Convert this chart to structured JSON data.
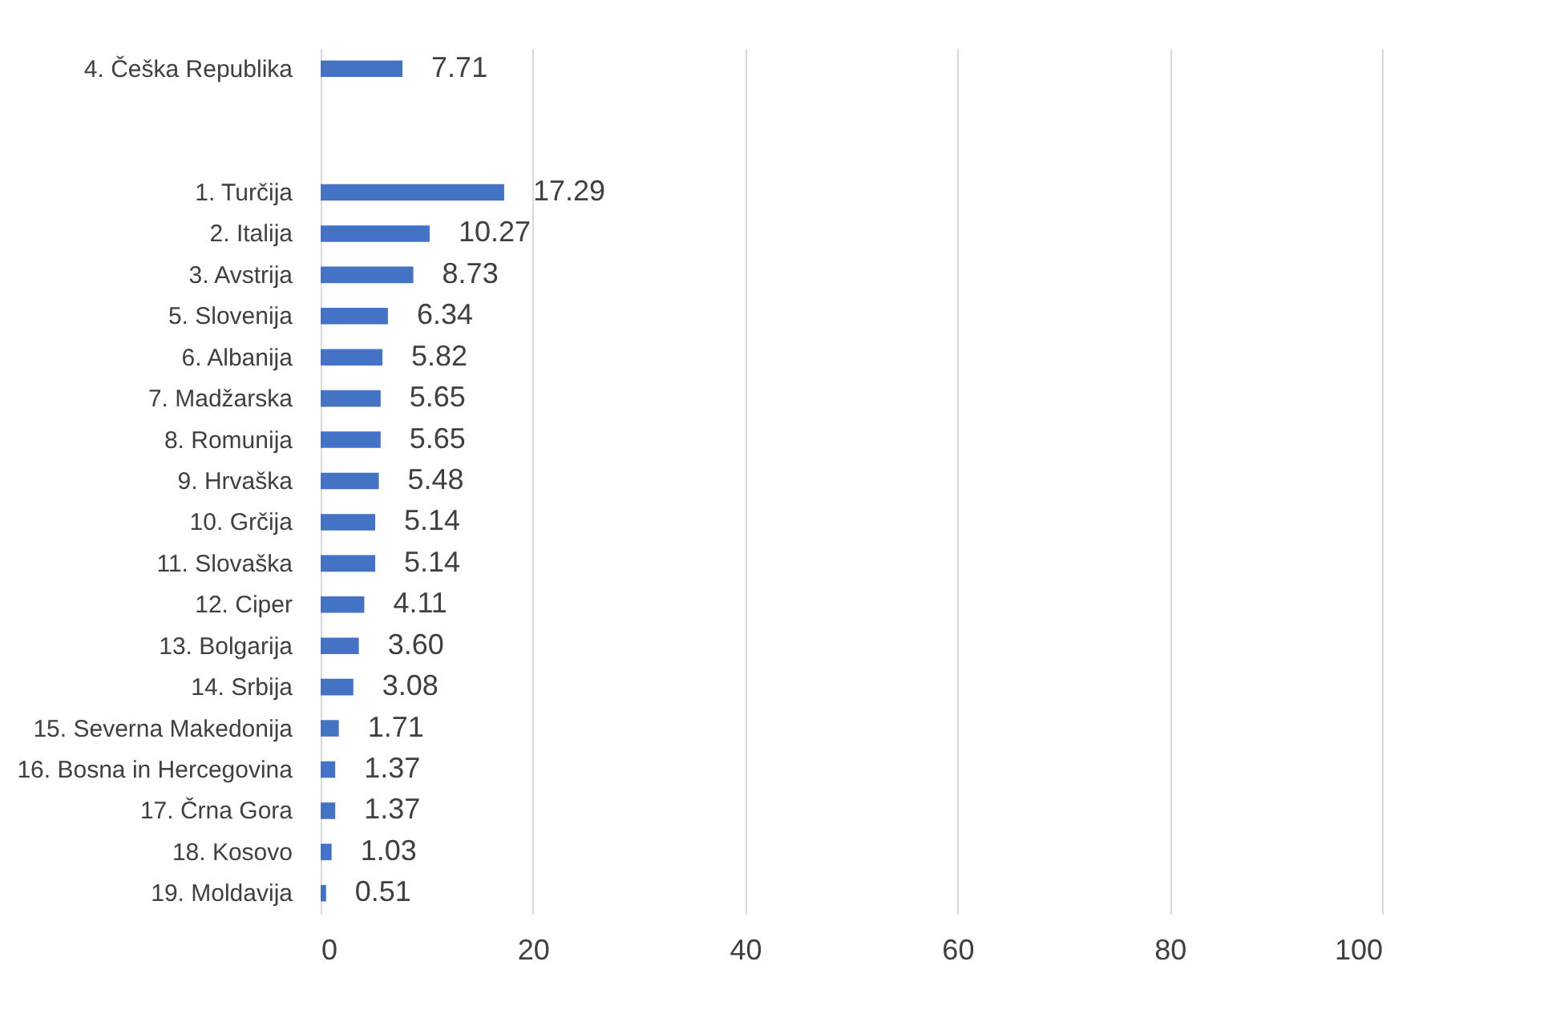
{
  "chart_data": {
    "type": "bar",
    "orientation": "horizontal",
    "categories": [
      "4. Češka Republika",
      null,
      null,
      "1. Turčija",
      "2. Italija",
      "3. Avstrija",
      "5. Slovenija",
      "6. Albanija",
      "7. Madžarska",
      "8. Romunija",
      "9. Hrvaška",
      "10. Grčija",
      "11. Slovaška",
      "12. Ciper",
      "13. Bolgarija",
      "14. Srbija",
      "15. Severna Makedonija",
      "16. Bosna in Hercegovina",
      "17. Črna Gora",
      "18. Kosovo",
      "19. Moldavija"
    ],
    "values": [
      7.71,
      null,
      null,
      17.29,
      10.27,
      8.73,
      6.34,
      5.82,
      5.65,
      5.65,
      5.48,
      5.14,
      5.14,
      4.11,
      3.6,
      3.08,
      1.71,
      1.37,
      1.37,
      1.03,
      0.51
    ],
    "value_labels": [
      "7.71",
      null,
      null,
      "17.29",
      "10.27",
      "8.73",
      "6.34",
      "5.82",
      "5.65",
      "5.65",
      "5.48",
      "5.14",
      "5.14",
      "4.11",
      "3.60",
      "3.08",
      "1.71",
      "1.37",
      "1.37",
      "1.03",
      "0.51"
    ],
    "color": "#4472c4",
    "xlim": [
      0,
      100
    ],
    "xticks": [
      0,
      20,
      40,
      60,
      80,
      100
    ],
    "grid": "x"
  }
}
